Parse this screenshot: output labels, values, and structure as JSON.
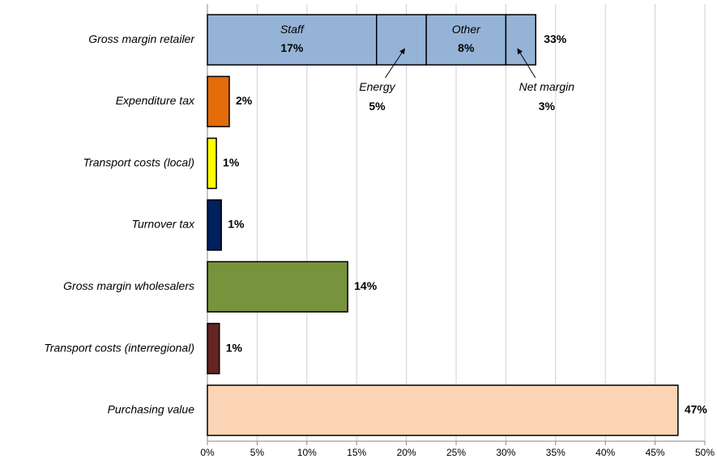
{
  "chart_data": {
    "type": "bar",
    "orientation": "horizontal",
    "categories": [
      "Gross margin retailer",
      "Expenditure tax",
      "Transport costs (local)",
      "Turnover tax",
      "Gross margin wholesalers",
      "Transport costs (interregional)",
      "Purchasing value"
    ],
    "values": [
      null,
      2.2,
      0.9,
      1.4,
      14.1,
      1.2,
      47.3
    ],
    "value_labels": [
      null,
      "2%",
      "1%",
      "1%",
      "14%",
      "1%",
      "47%"
    ],
    "colors": [
      null,
      "#e46c0a",
      "#ffff00",
      "#002060",
      "#77933c",
      "#632523",
      "#fbd5b5"
    ],
    "stacked_bar": {
      "segments": [
        {
          "name": "Staff",
          "value": 17,
          "value_label": "17%",
          "color": "#95b3d7",
          "callout": false
        },
        {
          "name": "Energy",
          "value": 5,
          "value_label": "5%",
          "color": "#95b3d7",
          "callout": true
        },
        {
          "name": "Other",
          "value": 8,
          "value_label": "8%",
          "color": "#95b3d7",
          "callout": false
        },
        {
          "name": "Net margin",
          "value": 3,
          "value_label": "3%",
          "color": "#95b3d7",
          "callout": true
        }
      ],
      "total": 33,
      "total_label": "33%"
    },
    "xlim": [
      0,
      50
    ],
    "xticks": [
      {
        "value": 0,
        "label": "0%"
      },
      {
        "value": 5,
        "label": "5%"
      },
      {
        "value": 10,
        "label": "10%"
      },
      {
        "value": 15,
        "label": "15%"
      },
      {
        "value": 20,
        "label": "20%"
      },
      {
        "value": 25,
        "label": "25%"
      },
      {
        "value": 30,
        "label": "30%"
      },
      {
        "value": 35,
        "label": "35%"
      },
      {
        "value": 40,
        "label": "40%"
      },
      {
        "value": 45,
        "label": "45%"
      },
      {
        "value": 50,
        "label": "50%"
      }
    ],
    "grid": true
  }
}
